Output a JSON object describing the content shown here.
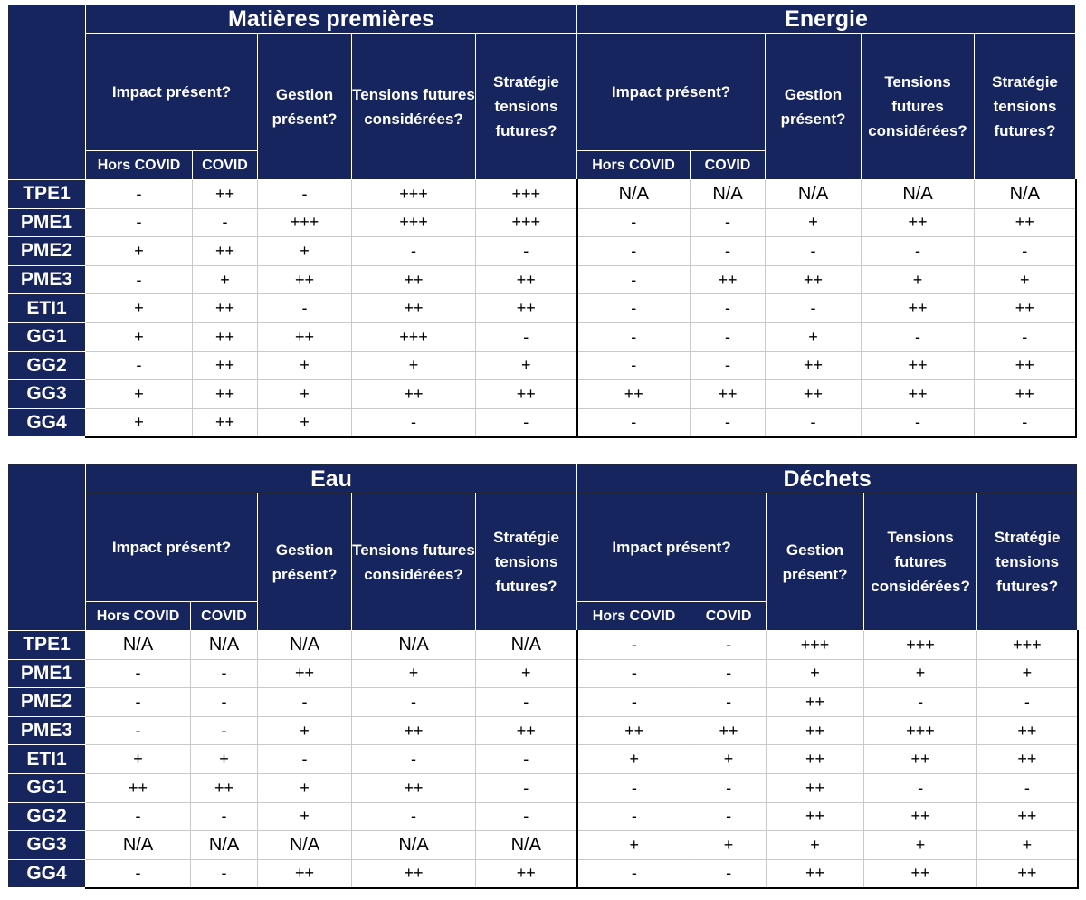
{
  "tables": [
    {
      "groups": [
        "Matières premières",
        "Energie"
      ],
      "headers": {
        "impact": "Impact présent?",
        "gestion": "Gestion présent?",
        "tensions": "Tensions futures considérées?",
        "strategie": "Stratégie tensions futures?",
        "hors_covid": "Hors COVID",
        "covid": "COVID"
      },
      "rows": [
        {
          "label": "TPE1",
          "values": [
            "-",
            "++",
            "-",
            "+++",
            "+++",
            "N/A",
            "N/A",
            "N/A",
            "N/A",
            "N/A"
          ]
        },
        {
          "label": "PME1",
          "values": [
            "-",
            "-",
            "+++",
            "+++",
            "+++",
            "-",
            "-",
            "+",
            "++",
            "++"
          ]
        },
        {
          "label": "PME2",
          "values": [
            "+",
            "++",
            "+",
            "-",
            "-",
            "-",
            "-",
            "-",
            "-",
            "-"
          ]
        },
        {
          "label": "PME3",
          "values": [
            "-",
            "+",
            "++",
            "++",
            "++",
            "-",
            "++",
            "++",
            "+",
            "+"
          ]
        },
        {
          "label": "ETI1",
          "values": [
            "+",
            "++",
            "-",
            "++",
            "++",
            "-",
            "-",
            "-",
            "++",
            "++"
          ]
        },
        {
          "label": "GG1",
          "values": [
            "+",
            "++",
            "++",
            "+++",
            "-",
            "-",
            "-",
            "+",
            "-",
            "-"
          ]
        },
        {
          "label": "GG2",
          "values": [
            "-",
            "++",
            "+",
            "+",
            "+",
            "-",
            "-",
            "++",
            "++",
            "++"
          ]
        },
        {
          "label": "GG3",
          "values": [
            "+",
            "++",
            "+",
            "++",
            "++",
            "++",
            "++",
            "++",
            "++",
            "++"
          ]
        },
        {
          "label": "GG4",
          "values": [
            "+",
            "++",
            "+",
            "-",
            "-",
            "-",
            "-",
            "-",
            "-",
            "-"
          ]
        }
      ]
    },
    {
      "groups": [
        "Eau",
        "Déchets"
      ],
      "headers": {
        "impact": "Impact présent?",
        "gestion": "Gestion présent?",
        "tensions": "Tensions futures considérées?",
        "strategie": "Stratégie tensions futures?",
        "hors_covid": "Hors COVID",
        "covid": "COVID"
      },
      "rows": [
        {
          "label": "TPE1",
          "values": [
            "N/A",
            "N/A",
            "N/A",
            "N/A",
            "N/A",
            "-",
            "-",
            "+++",
            "+++",
            "+++"
          ]
        },
        {
          "label": "PME1",
          "values": [
            "-",
            "-",
            "++",
            "+",
            "+",
            "-",
            "-",
            "+",
            "+",
            "+"
          ]
        },
        {
          "label": "PME2",
          "values": [
            "-",
            "-",
            "-",
            "-",
            "-",
            "-",
            "-",
            "++",
            "-",
            "-"
          ]
        },
        {
          "label": "PME3",
          "values": [
            "-",
            "-",
            "+",
            "++",
            "++",
            "++",
            "++",
            "++",
            "+++",
            "++"
          ]
        },
        {
          "label": "ETI1",
          "values": [
            "+",
            "+",
            "-",
            "-",
            "-",
            "+",
            "+",
            "++",
            "++",
            "++"
          ]
        },
        {
          "label": "GG1",
          "values": [
            "++",
            "++",
            "+",
            "++",
            "-",
            "-",
            "-",
            "++",
            "-",
            "-"
          ]
        },
        {
          "label": "GG2",
          "values": [
            "-",
            "-",
            "+",
            "-",
            "-",
            "-",
            "-",
            "++",
            "++",
            "++"
          ]
        },
        {
          "label": "GG3",
          "values": [
            "N/A",
            "N/A",
            "N/A",
            "N/A",
            "N/A",
            "+",
            "+",
            "+",
            "+",
            "+"
          ]
        },
        {
          "label": "GG4",
          "values": [
            "-",
            "-",
            "++",
            "++",
            "++",
            "-",
            "-",
            "++",
            "++",
            "++"
          ]
        }
      ]
    }
  ],
  "colors": {
    "header_bg": "#17255e",
    "header_text": "#ffffff",
    "cell_bg": "#ffffff"
  }
}
